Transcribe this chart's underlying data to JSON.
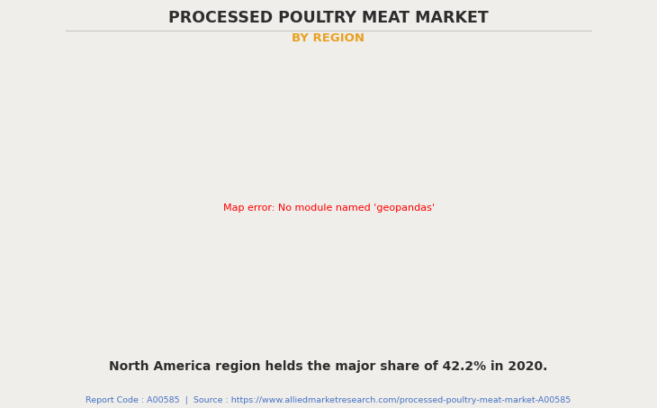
{
  "title": "PROCESSED POULTRY MEAT MARKET",
  "subtitle": "BY REGION",
  "subtitle_color": "#E8A020",
  "title_color": "#2d2d2d",
  "background_color": "#f0eeeb",
  "body_text": "North America region helds the major share of 42.2% in 2020.",
  "footer_text": "Report Code : A00585  |  Source : https://www.alliedmarketresearch.com/processed-poultry-meat-market-A00585",
  "footer_color": "#4472C4",
  "map_xlim": [
    -175,
    180
  ],
  "map_ylim": [
    -58,
    85
  ],
  "border_color": "#7aabcc",
  "shadow_color": "#8899aa",
  "default_land_color": "#d4dc94",
  "country_colors": {
    "Canada": "#72b87e",
    "United States of America": "#f5f5f2",
    "Mexico": "#c8d888",
    "Guatemala": "#c5d585",
    "Belize": "#c5d585",
    "Honduras": "#c5d585",
    "El Salvador": "#c5d585",
    "Nicaragua": "#c5d585",
    "Costa Rica": "#c5d585",
    "Panama": "#c5d585",
    "Cuba": "#c8d888",
    "Jamaica": "#c8d888",
    "Haiti": "#c8d888",
    "Dominican Rep.": "#c8d888",
    "Puerto Rico": "#c8d888",
    "Trinidad and Tobago": "#c8d888",
    "Colombia": "#c2d080",
    "Venezuela": "#c2d080",
    "Guyana": "#c2d080",
    "Suriname": "#c2d080",
    "Fr. Guiana": "#c2d080",
    "Ecuador": "#c0ce7e",
    "Peru": "#c0ce7e",
    "Brazil": "#bece7a",
    "Bolivia": "#bece7a",
    "Paraguay": "#becd7a",
    "Chile": "#bccc78",
    "Argentina": "#bccc78",
    "Uruguay": "#bccc78",
    "Iceland": "#ccd888",
    "Norway": "#ccd888",
    "Sweden": "#ccd888",
    "Finland": "#ccd888",
    "Denmark": "#ccd888",
    "United Kingdom": "#ccd888",
    "Ireland": "#ccd888",
    "Netherlands": "#ccd888",
    "Belgium": "#ccd888",
    "Luxembourg": "#ccd888",
    "France": "#ccd888",
    "Germany": "#ccd888",
    "Switzerland": "#ccd888",
    "Austria": "#ccd888",
    "Portugal": "#cad685",
    "Spain": "#cad685",
    "Italy": "#cad685",
    "Malta": "#cad685",
    "Slovenia": "#ccd888",
    "Croatia": "#cad685",
    "Bosnia and Herz.": "#cad685",
    "Serbia": "#cad685",
    "Montenegro": "#cad685",
    "Albania": "#cad685",
    "Macedonia": "#cad685",
    "Greece": "#cad685",
    "Bulgaria": "#cad685",
    "Romania": "#cad685",
    "Hungary": "#ccd888",
    "Slovakia": "#ccd888",
    "Czech Republic": "#ccd888",
    "Poland": "#ccd888",
    "Lithuania": "#ccd888",
    "Latvia": "#ccd888",
    "Estonia": "#ccd888",
    "Belarus": "#cad685",
    "Ukraine": "#cad685",
    "Moldova": "#cad685",
    "Russia": "#ccd890",
    "Kazakhstan": "#ccd888",
    "Georgia": "#c8d485",
    "Armenia": "#c8d485",
    "Azerbaijan": "#c8d485",
    "Turkey": "#c6d282",
    "Cyprus": "#c6d282",
    "Syria": "#c2cc7a",
    "Lebanon": "#c2cc7a",
    "Israel": "#c2cc7a",
    "Jordan": "#c2cc7a",
    "Iraq": "#c0ca78",
    "Kuwait": "#c0ca78",
    "Saudi Arabia": "#bec876",
    "Bahrain": "#bec876",
    "Qatar": "#bec876",
    "UAE": "#bec876",
    "Oman": "#bcc674",
    "Yemen": "#bac472",
    "Iran": "#c2ce80",
    "Afghanistan": "#c0cc7e",
    "Pakistan": "#c0cc7e",
    "India": "#c8d488",
    "Nepal": "#c4d082",
    "Bhutan": "#c4d082",
    "Bangladesh": "#c4d082",
    "Sri Lanka": "#c4d082",
    "Myanmar": "#c2ce80",
    "Thailand": "#c2ce80",
    "Laos": "#c2ce80",
    "Cambodia": "#c2ce80",
    "Vietnam": "#c2ce80",
    "Malaysia": "#c0cc7e",
    "Singapore": "#c0cc7e",
    "Indonesia": "#beca7c",
    "Philippines": "#beca7c",
    "Brunei": "#beca7c",
    "Timor-Leste": "#beca7c",
    "China": "#d8e898",
    "Mongolia": "#d6e695",
    "North Korea": "#d0e090",
    "South Korea": "#d0e090",
    "Japan": "#d2e292",
    "Taiwan": "#d0e090",
    "Uzbekistan": "#cad085",
    "Turkmenistan": "#cad085",
    "Tajikistan": "#cad085",
    "Kyrgyzstan": "#cad085",
    "Egypt": "#b8be6a",
    "Libya": "#b8be6a",
    "Tunisia": "#bac06c",
    "Algeria": "#b8be6a",
    "Morocco": "#bac06c",
    "W. Sahara": "#b8be6a",
    "Mauritania": "#b6bc68",
    "Mali": "#b4ba66",
    "Niger": "#b4ba66",
    "Chad": "#b4ba66",
    "Sudan": "#b2b864",
    "S. Sudan": "#b0b662",
    "Ethiopia": "#aeb460",
    "Eritrea": "#aeb460",
    "Djibouti": "#aeb460",
    "Somalia": "#acb25e",
    "Kenya": "#acb25e",
    "Uganda": "#acb25e",
    "Rwanda": "#acb25e",
    "Burundi": "#acb25e",
    "Tanzania": "#acb25e",
    "Senegal": "#b6bc68",
    "Gambia": "#b6bc68",
    "Guinea-Bissau": "#b6bc68",
    "Guinea": "#b4ba66",
    "Sierra Leone": "#b4ba66",
    "Liberia": "#b4ba66",
    "Ivory Coast": "#b4ba66",
    "Ghana": "#b4ba66",
    "Togo": "#b4ba66",
    "Benin": "#b4ba66",
    "Nigeria": "#b4ba66",
    "Cameroon": "#b2b864",
    "Eq. Guinea": "#b2b864",
    "Gabon": "#b2b864",
    "Congo": "#b2b864",
    "Dem. Rep. Congo": "#b0b662",
    "Central African Rep.": "#b2b864",
    "Angola": "#b0b662",
    "Zambia": "#aeb460",
    "Malawi": "#aeb460",
    "Mozambique": "#aeb460",
    "Zimbabwe": "#aeb460",
    "Botswana": "#aeb460",
    "Namibia": "#aeb460",
    "South Africa": "#acb25e",
    "Lesotho": "#acb25e",
    "Swaziland": "#acb25e",
    "Madagascar": "#acb25e",
    "Australia": "#dde8b0",
    "New Zealand": "#d8e2a8",
    "Papua New Guinea": "#beca7c",
    "Solomon Is.": "#beca7c",
    "Vanuatu": "#beca7c",
    "Fiji": "#beca7c",
    "Greenland": "#d0d8a0"
  }
}
